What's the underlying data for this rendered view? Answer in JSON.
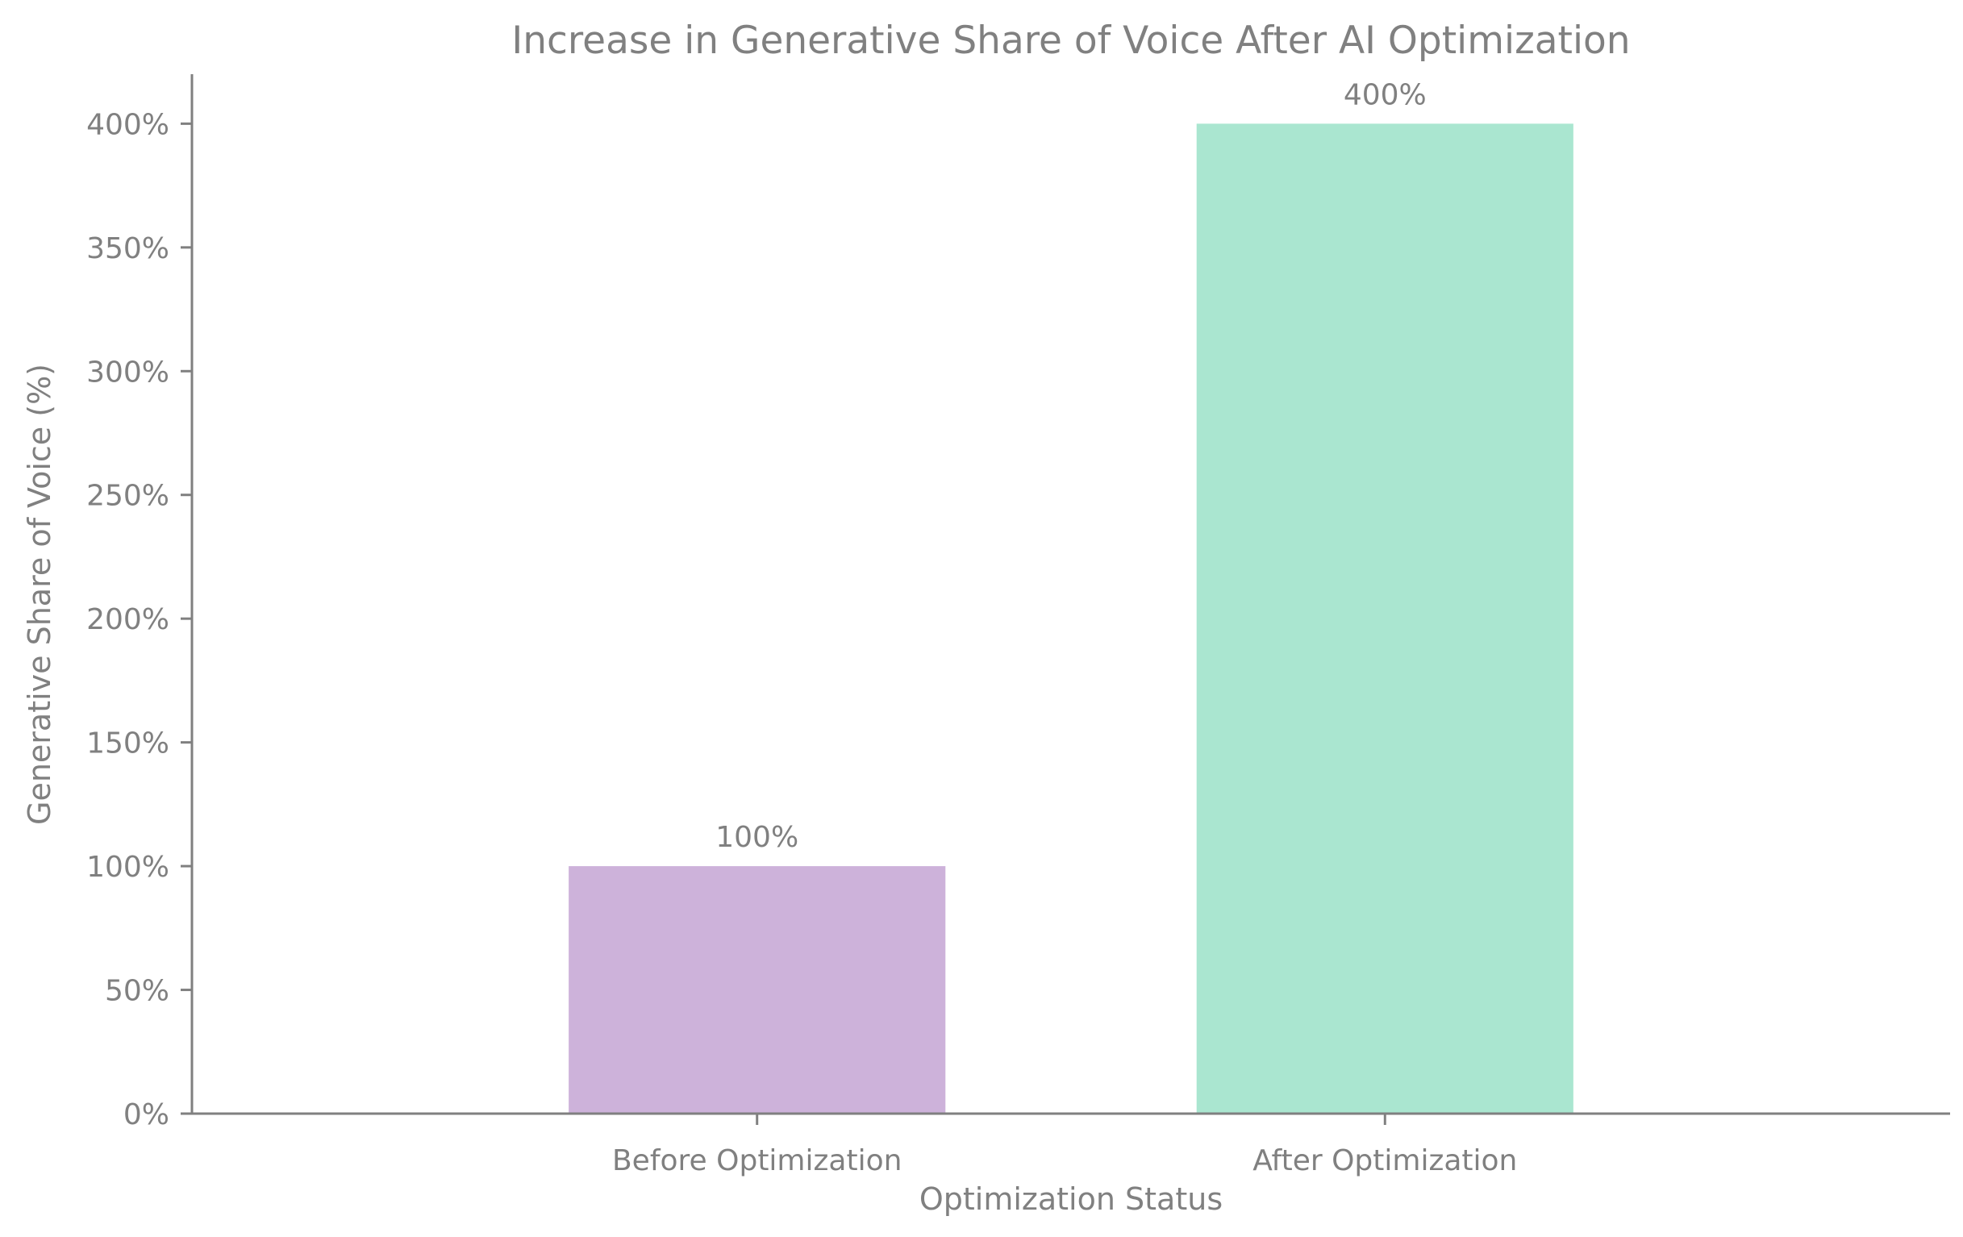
{
  "chart_data": {
    "type": "bar",
    "title": "Increase in Generative Share of Voice After AI Optimization",
    "xlabel": "Optimization Status",
    "ylabel": "Generative Share of Voice (%)",
    "categories": [
      "Before Optimization",
      "After Optimization"
    ],
    "values": [
      100,
      400
    ],
    "data_labels": [
      "100%",
      "400%"
    ],
    "colors": [
      "#cdb2da",
      "#aae6d0"
    ],
    "ylim": [
      0,
      420
    ],
    "yticks": [
      0,
      50,
      100,
      150,
      200,
      250,
      300,
      350,
      400
    ],
    "ytick_labels": [
      "0%",
      "50%",
      "100%",
      "150%",
      "200%",
      "250%",
      "300%",
      "350%",
      "400%"
    ],
    "grid": false,
    "legend": "none"
  }
}
